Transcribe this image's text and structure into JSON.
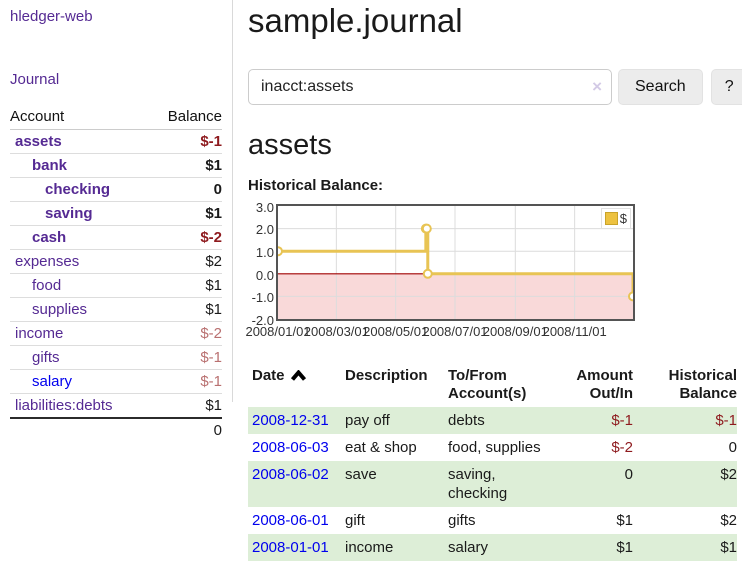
{
  "app": {
    "brand": "hledger-web",
    "nav_journal": "Journal"
  },
  "sidebar": {
    "col_account": "Account",
    "col_balance": "Balance",
    "accounts": [
      {
        "name": "assets",
        "indent": 1,
        "bold": true,
        "balance": "$-1",
        "neg": "strong"
      },
      {
        "name": "bank",
        "indent": 2,
        "bold": true,
        "balance": "$1",
        "neg": "none"
      },
      {
        "name": "checking",
        "indent": 3,
        "bold": true,
        "balance": "0",
        "neg": "none"
      },
      {
        "name": "saving",
        "indent": 3,
        "bold": true,
        "balance": "$1",
        "neg": "none"
      },
      {
        "name": "cash",
        "indent": 2,
        "bold": true,
        "balance": "$-2",
        "neg": "strong"
      },
      {
        "name": "expenses",
        "indent": 1,
        "bold": false,
        "balance": "$2",
        "neg": "none"
      },
      {
        "name": "food",
        "indent": 2,
        "bold": false,
        "balance": "$1",
        "neg": "none"
      },
      {
        "name": "supplies",
        "indent": 2,
        "bold": false,
        "balance": "$1",
        "neg": "none"
      },
      {
        "name": "income",
        "indent": 1,
        "bold": false,
        "balance": "$-2",
        "neg": "soft"
      },
      {
        "name": "gifts",
        "indent": 2,
        "bold": false,
        "balance": "$-1",
        "neg": "soft"
      },
      {
        "name": "salary",
        "indent": 2,
        "bold": false,
        "balance": "$-1",
        "neg": "soft",
        "link_color": "blue"
      },
      {
        "name": "liabilities:debts",
        "indent": 1,
        "bold": false,
        "balance": "$1",
        "neg": "none"
      }
    ],
    "total": "0"
  },
  "header": {
    "title": "sample.journal"
  },
  "search": {
    "query": "inacct:assets",
    "clear_icon": "×",
    "button": "Search",
    "help_button": "?"
  },
  "account_page": {
    "heading": "assets",
    "chart_title": "Historical Balance:"
  },
  "chart_data": {
    "type": "line",
    "style": "step-after",
    "title": "Historical Balance",
    "legend": [
      {
        "label": "$",
        "color": "#edc240"
      }
    ],
    "x_range": [
      "2008-01-01",
      "2008-12-31"
    ],
    "ylim": [
      -2,
      3
    ],
    "y_ticks": [
      3.0,
      2.0,
      1.0,
      0.0,
      -1.0,
      -2.0
    ],
    "x_ticks": [
      "2008/01/01",
      "2008/03/01",
      "2008/05/01",
      "2008/07/01",
      "2008/09/01",
      "2008/11/01"
    ],
    "series": [
      {
        "name": "$",
        "points": [
          [
            "2008-01-01",
            1
          ],
          [
            "2008-06-01",
            2
          ],
          [
            "2008-06-02",
            2
          ],
          [
            "2008-06-03",
            0
          ],
          [
            "2008-12-31",
            -1
          ]
        ]
      }
    ],
    "grid": true,
    "legend_position": "top-right",
    "line_color": "#e8c454",
    "marker_fill": "#ffffff",
    "negative_region_color": "#f9d9d9",
    "zero_line_color": "#a00000"
  },
  "register": {
    "columns": {
      "date": "Date",
      "description": "Description",
      "accounts": "To/From Account(s)",
      "amount": "Amount Out/In",
      "balance": "Historical Balance"
    },
    "rows": [
      {
        "date": "2008-12-31",
        "description": "pay off",
        "accounts": "debts",
        "amount": "$-1",
        "amount_neg": true,
        "balance": "$-1",
        "balance_neg": true
      },
      {
        "date": "2008-06-03",
        "description": "eat & shop",
        "accounts": "food, supplies",
        "amount": "$-2",
        "amount_neg": true,
        "balance": "0",
        "balance_neg": false
      },
      {
        "date": "2008-06-02",
        "description": "save",
        "accounts": "saving, checking",
        "amount": "0",
        "amount_neg": false,
        "balance": "$2",
        "balance_neg": false
      },
      {
        "date": "2008-06-01",
        "description": "gift",
        "accounts": "gifts",
        "amount": "$1",
        "amount_neg": false,
        "balance": "$2",
        "balance_neg": false
      },
      {
        "date": "2008-01-01",
        "description": "income",
        "accounts": "salary",
        "amount": "$1",
        "amount_neg": false,
        "balance": "$1",
        "balance_neg": false
      }
    ]
  }
}
